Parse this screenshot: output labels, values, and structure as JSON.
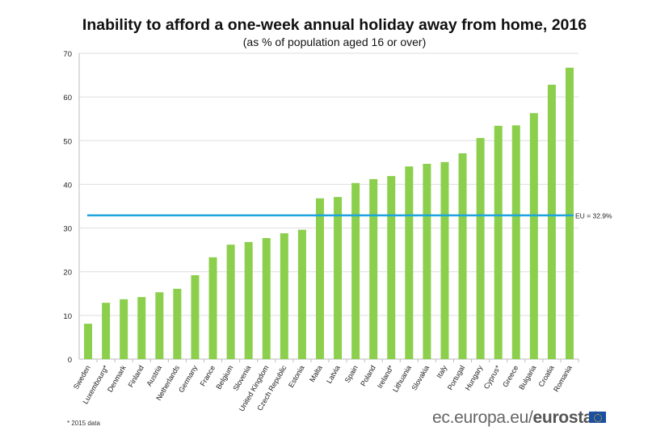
{
  "chart_data": {
    "type": "bar",
    "title": "Inability to afford a one-week annual holiday away from home, 2016",
    "subtitle": "(as % of population aged 16 or over)",
    "categories": [
      "Sweden",
      "Luxembourg*",
      "Denmark",
      "Finland",
      "Austria",
      "Netherlands",
      "Germany",
      "France",
      "Belgium",
      "Slovenia",
      "United Kingdom",
      "Czech Republic",
      "Estonia",
      "Malta",
      "Latvia",
      "Spain",
      "Poland",
      "Ireland*",
      "Lithuania",
      "Slovakia",
      "Italy",
      "Portugal",
      "Hungary",
      "Cyprus*",
      "Greece",
      "Bulgaria",
      "Croatia",
      "Romania"
    ],
    "values": [
      8.1,
      12.9,
      13.7,
      14.2,
      15.3,
      16.1,
      19.2,
      23.3,
      26.2,
      26.8,
      27.7,
      28.8,
      29.6,
      36.8,
      37.1,
      40.3,
      41.2,
      41.9,
      44.1,
      44.7,
      45.1,
      47.1,
      50.6,
      53.4,
      53.5,
      56.3,
      62.8,
      66.7
    ],
    "ylim": [
      0,
      70
    ],
    "yticks": [
      0,
      10,
      20,
      30,
      40,
      50,
      60,
      70
    ],
    "grid": true,
    "reference_line": {
      "value": 32.9,
      "label": "EU = 32.9%",
      "color": "#1fa3dc"
    },
    "bar_color": "#8ccf4d",
    "footnote": "* 2015 data"
  },
  "brand": {
    "prefix": "ec.europa.eu/",
    "name": "eurostat"
  }
}
